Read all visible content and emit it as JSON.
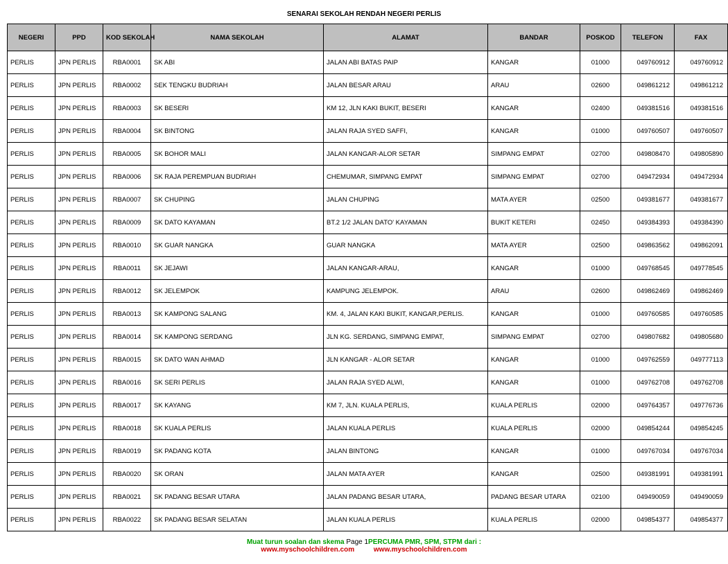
{
  "title": "SENARAI SEKOLAH RENDAH NEGERI PERLIS",
  "columns": {
    "negeri": "NEGERI",
    "ppd": "PPD",
    "kod": "KOD SEKOLAH",
    "nama": "NAMA SEKOLAH",
    "alamat": "ALAMAT",
    "bandar": "BANDAR",
    "poskod": "POSKOD",
    "telefon": "TELEFON",
    "fax": "FAX"
  },
  "rows": [
    {
      "negeri": "PERLIS",
      "ppd": "JPN PERLIS",
      "kod": "RBA0001",
      "nama": "SK ABI",
      "alamat": "JALAN ABI BATAS PAIP",
      "bandar": "KANGAR",
      "poskod": "01000",
      "telefon": "049760912",
      "fax": "049760912"
    },
    {
      "negeri": "PERLIS",
      "ppd": "JPN PERLIS",
      "kod": "RBA0002",
      "nama": "SEK TENGKU BUDRIAH",
      "alamat": "JALAN BESAR ARAU",
      "bandar": "ARAU",
      "poskod": "02600",
      "telefon": "049861212",
      "fax": "049861212"
    },
    {
      "negeri": "PERLIS",
      "ppd": "JPN PERLIS",
      "kod": "RBA0003",
      "nama": "SK BESERI",
      "alamat": "KM 12, JLN KAKI BUKIT, BESERI",
      "bandar": "KANGAR",
      "poskod": "02400",
      "telefon": "049381516",
      "fax": "049381516"
    },
    {
      "negeri": "PERLIS",
      "ppd": "JPN PERLIS",
      "kod": "RBA0004",
      "nama": "SK BINTONG",
      "alamat": "JALAN RAJA SYED SAFFI,",
      "bandar": "KANGAR",
      "poskod": "01000",
      "telefon": "049760507",
      "fax": "049760507"
    },
    {
      "negeri": "PERLIS",
      "ppd": "JPN PERLIS",
      "kod": "RBA0005",
      "nama": "SK BOHOR MALI",
      "alamat": "JALAN KANGAR-ALOR SETAR",
      "bandar": "SIMPANG EMPAT",
      "poskod": "02700",
      "telefon": "049808470",
      "fax": "049805890"
    },
    {
      "negeri": "PERLIS",
      "ppd": "JPN PERLIS",
      "kod": "RBA0006",
      "nama": "SK RAJA PEREMPUAN BUDRIAH",
      "alamat": "CHEMUMAR, SIMPANG EMPAT",
      "bandar": "SIMPANG EMPAT",
      "poskod": "02700",
      "telefon": "049472934",
      "fax": "049472934"
    },
    {
      "negeri": "PERLIS",
      "ppd": "JPN PERLIS",
      "kod": "RBA0007",
      "nama": "SK CHUPING",
      "alamat": "JALAN CHUPING",
      "bandar": "MATA AYER",
      "poskod": "02500",
      "telefon": "049381677",
      "fax": "049381677"
    },
    {
      "negeri": "PERLIS",
      "ppd": "JPN PERLIS",
      "kod": "RBA0009",
      "nama": "SK DATO KAYAMAN",
      "alamat": "BT.2 1/2 JALAN DATO' KAYAMAN",
      "bandar": "BUKIT KETERI",
      "poskod": "02450",
      "telefon": "049384393",
      "fax": "049384390"
    },
    {
      "negeri": "PERLIS",
      "ppd": "JPN PERLIS",
      "kod": "RBA0010",
      "nama": "SK GUAR NANGKA",
      "alamat": "GUAR NANGKA",
      "bandar": "MATA AYER",
      "poskod": "02500",
      "telefon": "049863562",
      "fax": "049862091"
    },
    {
      "negeri": "PERLIS",
      "ppd": "JPN PERLIS",
      "kod": "RBA0011",
      "nama": "SK JEJAWI",
      "alamat": "JALAN KANGAR-ARAU,",
      "bandar": "KANGAR",
      "poskod": "01000",
      "telefon": "049768545",
      "fax": "049778545"
    },
    {
      "negeri": "PERLIS",
      "ppd": "JPN PERLIS",
      "kod": "RBA0012",
      "nama": "SK JELEMPOK",
      "alamat": "KAMPUNG JELEMPOK.",
      "bandar": "ARAU",
      "poskod": "02600",
      "telefon": "049862469",
      "fax": "049862469"
    },
    {
      "negeri": "PERLIS",
      "ppd": "JPN PERLIS",
      "kod": "RBA0013",
      "nama": "SK KAMPONG SALANG",
      "alamat": "KM. 4,  JALAN  KAKI  BUKIT, KANGAR,PERLIS.",
      "bandar": "KANGAR",
      "poskod": "01000",
      "telefon": "049760585",
      "fax": "049760585"
    },
    {
      "negeri": "PERLIS",
      "ppd": "JPN PERLIS",
      "kod": "RBA0014",
      "nama": "SK KAMPONG SERDANG",
      "alamat": "JLN KG. SERDANG, SIMPANG EMPAT,",
      "bandar": "SIMPANG EMPAT",
      "poskod": "02700",
      "telefon": "049807682",
      "fax": "049805680"
    },
    {
      "negeri": "PERLIS",
      "ppd": "JPN PERLIS",
      "kod": "RBA0015",
      "nama": "SK DATO WAN AHMAD",
      "alamat": "JLN KANGAR - ALOR SETAR",
      "bandar": "KANGAR",
      "poskod": "01000",
      "telefon": "049762559",
      "fax": "049777113"
    },
    {
      "negeri": "PERLIS",
      "ppd": "JPN PERLIS",
      "kod": "RBA0016",
      "nama": "SK SERI PERLIS",
      "alamat": "JALAN RAJA SYED ALWI,",
      "bandar": "KANGAR",
      "poskod": "01000",
      "telefon": "049762708",
      "fax": "049762708"
    },
    {
      "negeri": "PERLIS",
      "ppd": "JPN PERLIS",
      "kod": "RBA0017",
      "nama": "SK KAYANG",
      "alamat": "KM 7, JLN. KUALA PERLIS,",
      "bandar": "KUALA PERLIS",
      "poskod": "02000",
      "telefon": "049764357",
      "fax": "049776736"
    },
    {
      "negeri": "PERLIS",
      "ppd": "JPN PERLIS",
      "kod": "RBA0018",
      "nama": "SK KUALA PERLIS",
      "alamat": "JALAN KUALA PERLIS",
      "bandar": "KUALA PERLIS",
      "poskod": "02000",
      "telefon": "049854244",
      "fax": "049854245"
    },
    {
      "negeri": "PERLIS",
      "ppd": "JPN PERLIS",
      "kod": "RBA0019",
      "nama": "SK PADANG KOTA",
      "alamat": "JALAN BINTONG",
      "bandar": "KANGAR",
      "poskod": "01000",
      "telefon": "049767034",
      "fax": "049767034"
    },
    {
      "negeri": "PERLIS",
      "ppd": "JPN PERLIS",
      "kod": "RBA0020",
      "nama": "SK ORAN",
      "alamat": "JALAN MATA AYER",
      "bandar": "KANGAR",
      "poskod": "02500",
      "telefon": "049381991",
      "fax": "049381991"
    },
    {
      "negeri": "PERLIS",
      "ppd": "JPN PERLIS",
      "kod": "RBA0021",
      "nama": "SK PADANG BESAR UTARA",
      "alamat": "JALAN PADANG BESAR UTARA,",
      "bandar": "PADANG BESAR UTARA",
      "poskod": "02100",
      "telefon": "049490059",
      "fax": "049490059"
    },
    {
      "negeri": "PERLIS",
      "ppd": "JPN PERLIS",
      "kod": "RBA0022",
      "nama": "SK PADANG BESAR SELATAN",
      "alamat": "JALAN KUALA PERLIS",
      "bandar": "KUALA PERLIS",
      "poskod": "02000",
      "telefon": "049854377",
      "fax": "049854377"
    }
  ],
  "footer": {
    "line1_a": "Muat turun soalan dan skema ",
    "page": "Page 1",
    "line1_b": "PERCUMA PMR, SPM, STPM dari :",
    "url": "www.myschoolchildren.com"
  }
}
